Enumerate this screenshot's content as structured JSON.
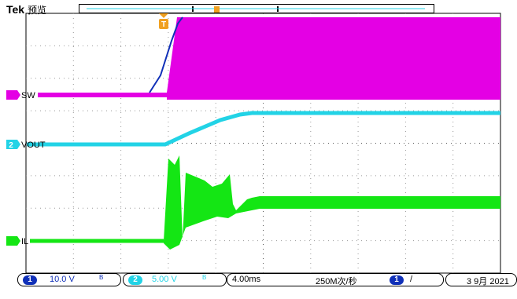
{
  "header": {
    "brand": "Tek",
    "mode": "预览",
    "trigger_marker": "T"
  },
  "channels": {
    "sw": {
      "label": "SW",
      "color": "#e400e4"
    },
    "vout": {
      "label": "VOUT",
      "number": "2",
      "color": "#22d3e6"
    },
    "il": {
      "label": "IL",
      "color": "#14e614"
    },
    "blue": {
      "color": "#1030b8"
    }
  },
  "status": {
    "ch1": {
      "badge": "1",
      "scale": "10.0 V",
      "bw": "B",
      "color": "#1030b8"
    },
    "ch2": {
      "badge": "2",
      "scale": "5.00 V",
      "bw": "B",
      "color": "#22d3e6"
    },
    "timebase": "4.00ms",
    "sample_rate": "250M次/秒",
    "trigger": {
      "badge": "1",
      "slope": "/"
    },
    "date": "3 9月 2021"
  }
}
